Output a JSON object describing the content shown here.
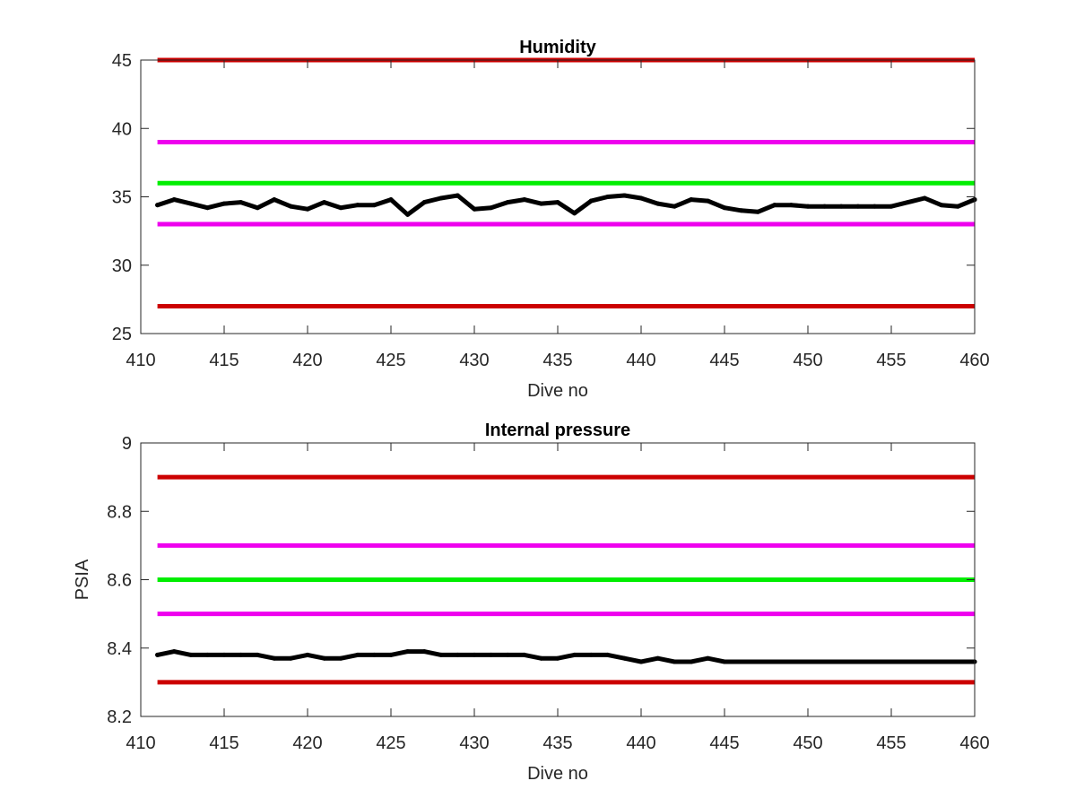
{
  "chart_data": [
    {
      "type": "line",
      "title": "Humidity",
      "xlabel": "Dive no",
      "ylabel": "",
      "xlim": [
        410,
        460
      ],
      "ylim": [
        25,
        45
      ],
      "xticks": [
        410,
        415,
        420,
        425,
        430,
        435,
        440,
        445,
        450,
        455,
        460
      ],
      "yticks": [
        25,
        30,
        35,
        40,
        45
      ],
      "grid": false,
      "thresholds": [
        {
          "value": 45,
          "color": "#cc0000",
          "x": [
            411,
            460
          ]
        },
        {
          "value": 39,
          "color": "#ee00ee",
          "x": [
            411,
            460
          ]
        },
        {
          "value": 36,
          "color": "#00ee00",
          "x": [
            411,
            460
          ]
        },
        {
          "value": 33,
          "color": "#ee00ee",
          "x": [
            411,
            460
          ]
        },
        {
          "value": 27,
          "color": "#cc0000",
          "x": [
            411,
            460
          ]
        }
      ],
      "series": [
        {
          "color": "#000000",
          "x": [
            411,
            412,
            413,
            414,
            415,
            416,
            417,
            418,
            419,
            420,
            421,
            422,
            423,
            424,
            425,
            426,
            427,
            428,
            429,
            430,
            431,
            432,
            433,
            434,
            435,
            436,
            437,
            438,
            439,
            440,
            441,
            442,
            443,
            444,
            445,
            446,
            447,
            448,
            449,
            450,
            451,
            452,
            453,
            454,
            455,
            456,
            457,
            458,
            459,
            460
          ],
          "values": [
            34.4,
            34.8,
            34.5,
            34.2,
            34.5,
            34.6,
            34.2,
            34.8,
            34.3,
            34.1,
            34.6,
            34.2,
            34.4,
            34.4,
            34.8,
            33.7,
            34.6,
            34.9,
            35.1,
            34.1,
            34.2,
            34.6,
            34.8,
            34.5,
            34.6,
            33.8,
            34.7,
            35.0,
            35.1,
            34.9,
            34.5,
            34.3,
            34.8,
            34.7,
            34.2,
            34.0,
            33.9,
            34.4,
            34.4,
            34.3,
            34.3,
            34.3,
            34.3,
            34.3,
            34.3,
            34.6,
            34.9,
            34.4,
            34.3,
            34.8
          ]
        }
      ]
    },
    {
      "type": "line",
      "title": "Internal pressure",
      "xlabel": "Dive no",
      "ylabel": "PSIA",
      "xlim": [
        410,
        460
      ],
      "ylim": [
        8.2,
        9
      ],
      "xticks": [
        410,
        415,
        420,
        425,
        430,
        435,
        440,
        445,
        450,
        455,
        460
      ],
      "yticks": [
        8.2,
        8.4,
        8.6,
        8.8,
        9
      ],
      "grid": false,
      "thresholds": [
        {
          "value": 8.9,
          "color": "#cc0000",
          "x": [
            411,
            460
          ]
        },
        {
          "value": 8.7,
          "color": "#ee00ee",
          "x": [
            411,
            460
          ]
        },
        {
          "value": 8.6,
          "color": "#00ee00",
          "x": [
            411,
            460
          ]
        },
        {
          "value": 8.5,
          "color": "#ee00ee",
          "x": [
            411,
            460
          ]
        },
        {
          "value": 8.3,
          "color": "#cc0000",
          "x": [
            411,
            460
          ]
        }
      ],
      "series": [
        {
          "color": "#000000",
          "x": [
            411,
            412,
            413,
            414,
            415,
            416,
            417,
            418,
            419,
            420,
            421,
            422,
            423,
            424,
            425,
            426,
            427,
            428,
            429,
            430,
            431,
            432,
            433,
            434,
            435,
            436,
            437,
            438,
            439,
            440,
            441,
            442,
            443,
            444,
            445,
            446,
            447,
            448,
            449,
            450,
            451,
            452,
            453,
            454,
            455,
            456,
            457,
            458,
            459,
            460
          ],
          "values": [
            8.38,
            8.39,
            8.38,
            8.38,
            8.38,
            8.38,
            8.38,
            8.37,
            8.37,
            8.38,
            8.37,
            8.37,
            8.38,
            8.38,
            8.38,
            8.39,
            8.39,
            8.38,
            8.38,
            8.38,
            8.38,
            8.38,
            8.38,
            8.37,
            8.37,
            8.38,
            8.38,
            8.38,
            8.37,
            8.36,
            8.37,
            8.36,
            8.36,
            8.37,
            8.36,
            8.36,
            8.36,
            8.36,
            8.36,
            8.36,
            8.36,
            8.36,
            8.36,
            8.36,
            8.36,
            8.36,
            8.36,
            8.36,
            8.36,
            8.36
          ]
        }
      ]
    }
  ]
}
